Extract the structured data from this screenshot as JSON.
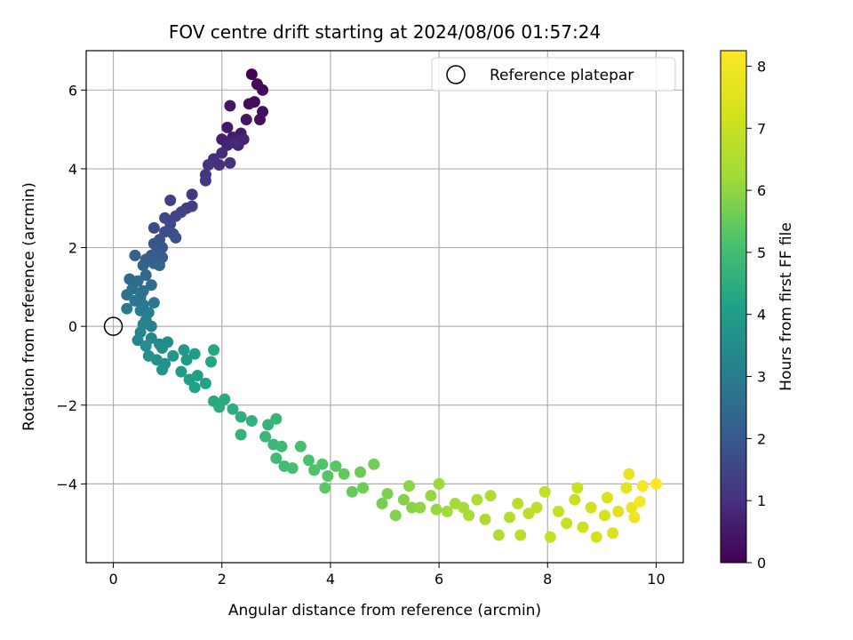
{
  "chart_data": {
    "type": "scatter",
    "title": "FOV centre drift starting at 2024/08/06 01:57:24",
    "xlabel": "Angular distance from reference (arcmin)",
    "ylabel": "Rotation from reference (arcmin)",
    "xlim": [
      -0.5,
      10.5
    ],
    "ylim": [
      -6.0,
      7.0
    ],
    "xticks": [
      0,
      2,
      4,
      6,
      8,
      10
    ],
    "yticks": [
      -4,
      -2,
      0,
      2,
      4,
      6
    ],
    "xtick_labels": [
      "0",
      "2",
      "4",
      "6",
      "8",
      "10"
    ],
    "ytick_labels": [
      "−4",
      "−2",
      "0",
      "2",
      "4",
      "6"
    ],
    "grid": true,
    "legend": {
      "placement": "top-right",
      "entries": [
        "Reference platepar"
      ]
    },
    "reference_point": {
      "x": 0,
      "y": 0,
      "label": "Reference platepar"
    },
    "colorbar": {
      "label": "Hours from first FF file",
      "min": 0,
      "max": 8.25,
      "ticks": [
        0,
        1,
        2,
        3,
        4,
        5,
        6,
        7,
        8
      ],
      "tick_labels": [
        "0",
        "1",
        "2",
        "3",
        "4",
        "5",
        "6",
        "7",
        "8"
      ],
      "colormap": "viridis"
    },
    "series": [
      {
        "color_by": "hours",
        "points": [
          {
            "x": 2.55,
            "y": 6.4,
            "h": 0.05
          },
          {
            "x": 2.65,
            "y": 6.15,
            "h": 0.1
          },
          {
            "x": 2.75,
            "y": 6.0,
            "h": 0.15
          },
          {
            "x": 2.6,
            "y": 5.7,
            "h": 0.2
          },
          {
            "x": 2.5,
            "y": 5.65,
            "h": 0.25
          },
          {
            "x": 2.75,
            "y": 5.45,
            "h": 0.3
          },
          {
            "x": 2.7,
            "y": 5.25,
            "h": 0.35
          },
          {
            "x": 2.45,
            "y": 5.25,
            "h": 0.4
          },
          {
            "x": 2.15,
            "y": 5.6,
            "h": 0.45
          },
          {
            "x": 2.1,
            "y": 5.05,
            "h": 0.5
          },
          {
            "x": 2.35,
            "y": 4.9,
            "h": 0.55
          },
          {
            "x": 2.0,
            "y": 4.75,
            "h": 0.6
          },
          {
            "x": 2.2,
            "y": 4.8,
            "h": 0.65
          },
          {
            "x": 2.3,
            "y": 4.6,
            "h": 0.7
          },
          {
            "x": 2.1,
            "y": 4.6,
            "h": 0.75
          },
          {
            "x": 2.4,
            "y": 4.75,
            "h": 0.8
          },
          {
            "x": 2.25,
            "y": 4.65,
            "h": 0.85
          },
          {
            "x": 2.0,
            "y": 4.4,
            "h": 0.9
          },
          {
            "x": 1.85,
            "y": 4.25,
            "h": 0.95
          },
          {
            "x": 1.95,
            "y": 4.1,
            "h": 1.0
          },
          {
            "x": 2.15,
            "y": 4.15,
            "h": 1.05
          },
          {
            "x": 1.75,
            "y": 4.1,
            "h": 1.1
          },
          {
            "x": 1.7,
            "y": 3.85,
            "h": 1.15
          },
          {
            "x": 1.7,
            "y": 3.7,
            "h": 1.2
          },
          {
            "x": 1.45,
            "y": 3.35,
            "h": 1.25
          },
          {
            "x": 1.35,
            "y": 3.0,
            "h": 1.3
          },
          {
            "x": 1.45,
            "y": 3.05,
            "h": 1.35
          },
          {
            "x": 1.05,
            "y": 3.2,
            "h": 1.4
          },
          {
            "x": 1.25,
            "y": 2.9,
            "h": 1.45
          },
          {
            "x": 1.15,
            "y": 2.8,
            "h": 1.5
          },
          {
            "x": 0.95,
            "y": 2.75,
            "h": 1.55
          },
          {
            "x": 1.05,
            "y": 2.6,
            "h": 1.6
          },
          {
            "x": 0.75,
            "y": 2.5,
            "h": 1.65
          },
          {
            "x": 0.95,
            "y": 2.4,
            "h": 1.7
          },
          {
            "x": 1.1,
            "y": 2.35,
            "h": 1.75
          },
          {
            "x": 1.15,
            "y": 2.25,
            "h": 1.8
          },
          {
            "x": 0.85,
            "y": 2.2,
            "h": 1.85
          },
          {
            "x": 0.75,
            "y": 2.1,
            "h": 1.9
          },
          {
            "x": 0.9,
            "y": 2.0,
            "h": 1.95
          },
          {
            "x": 0.8,
            "y": 1.9,
            "h": 2.0
          },
          {
            "x": 0.9,
            "y": 1.75,
            "h": 2.05
          },
          {
            "x": 0.7,
            "y": 1.8,
            "h": 2.1
          },
          {
            "x": 0.6,
            "y": 1.7,
            "h": 2.15
          },
          {
            "x": 0.75,
            "y": 1.6,
            "h": 2.2
          },
          {
            "x": 0.4,
            "y": 1.8,
            "h": 2.25
          },
          {
            "x": 0.55,
            "y": 1.55,
            "h": 2.3
          },
          {
            "x": 0.85,
            "y": 1.55,
            "h": 2.35
          },
          {
            "x": 0.6,
            "y": 1.3,
            "h": 2.4
          },
          {
            "x": 0.3,
            "y": 1.2,
            "h": 2.45
          },
          {
            "x": 0.45,
            "y": 1.15,
            "h": 2.5
          },
          {
            "x": 0.7,
            "y": 1.05,
            "h": 2.55
          },
          {
            "x": 0.55,
            "y": 0.9,
            "h": 2.6
          },
          {
            "x": 0.35,
            "y": 0.95,
            "h": 2.65
          },
          {
            "x": 0.25,
            "y": 0.8,
            "h": 2.7
          },
          {
            "x": 0.5,
            "y": 0.75,
            "h": 2.75
          },
          {
            "x": 0.4,
            "y": 0.65,
            "h": 2.8
          },
          {
            "x": 0.55,
            "y": 0.55,
            "h": 2.85
          },
          {
            "x": 0.75,
            "y": 0.6,
            "h": 2.9
          },
          {
            "x": 0.25,
            "y": 0.45,
            "h": 2.95
          },
          {
            "x": 0.5,
            "y": 0.4,
            "h": 3.0
          },
          {
            "x": 0.65,
            "y": 0.35,
            "h": 3.05
          },
          {
            "x": 0.6,
            "y": 0.15,
            "h": 3.1
          },
          {
            "x": 0.7,
            "y": 0.0,
            "h": 3.15
          },
          {
            "x": 0.55,
            "y": 0.05,
            "h": 3.2
          },
          {
            "x": 0.5,
            "y": -0.15,
            "h": 3.25
          },
          {
            "x": 0.45,
            "y": -0.35,
            "h": 3.3
          },
          {
            "x": 0.7,
            "y": -0.3,
            "h": 3.35
          },
          {
            "x": 0.85,
            "y": -0.45,
            "h": 3.4
          },
          {
            "x": 1.0,
            "y": -0.4,
            "h": 3.45
          },
          {
            "x": 0.9,
            "y": -0.55,
            "h": 3.5
          },
          {
            "x": 0.6,
            "y": -0.5,
            "h": 3.55
          },
          {
            "x": 0.65,
            "y": -0.75,
            "h": 3.6
          },
          {
            "x": 0.8,
            "y": -0.85,
            "h": 3.65
          },
          {
            "x": 0.95,
            "y": -0.95,
            "h": 3.7
          },
          {
            "x": 0.9,
            "y": -1.1,
            "h": 3.75
          },
          {
            "x": 1.1,
            "y": -0.75,
            "h": 3.8
          },
          {
            "x": 1.3,
            "y": -0.6,
            "h": 3.85
          },
          {
            "x": 1.35,
            "y": -0.85,
            "h": 3.9
          },
          {
            "x": 1.5,
            "y": -0.7,
            "h": 3.95
          },
          {
            "x": 1.25,
            "y": -1.15,
            "h": 4.0
          },
          {
            "x": 1.4,
            "y": -1.35,
            "h": 4.05
          },
          {
            "x": 1.55,
            "y": -1.25,
            "h": 4.1
          },
          {
            "x": 1.5,
            "y": -1.55,
            "h": 4.15
          },
          {
            "x": 1.7,
            "y": -1.45,
            "h": 4.2
          },
          {
            "x": 1.8,
            "y": -0.9,
            "h": 4.25
          },
          {
            "x": 1.85,
            "y": -0.6,
            "h": 4.3
          },
          {
            "x": 1.85,
            "y": -1.9,
            "h": 4.35
          },
          {
            "x": 2.05,
            "y": -1.85,
            "h": 4.4
          },
          {
            "x": 1.95,
            "y": -2.05,
            "h": 4.45
          },
          {
            "x": 2.2,
            "y": -2.1,
            "h": 4.5
          },
          {
            "x": 2.35,
            "y": -2.3,
            "h": 4.55
          },
          {
            "x": 2.55,
            "y": -2.4,
            "h": 4.6
          },
          {
            "x": 2.35,
            "y": -2.75,
            "h": 4.65
          },
          {
            "x": 2.85,
            "y": -2.5,
            "h": 4.7
          },
          {
            "x": 3.0,
            "y": -2.35,
            "h": 4.75
          },
          {
            "x": 2.8,
            "y": -2.8,
            "h": 4.8
          },
          {
            "x": 2.95,
            "y": -3.0,
            "h": 4.85
          },
          {
            "x": 3.1,
            "y": -3.05,
            "h": 4.9
          },
          {
            "x": 3.0,
            "y": -3.35,
            "h": 4.95
          },
          {
            "x": 3.15,
            "y": -3.55,
            "h": 5.0
          },
          {
            "x": 3.3,
            "y": -3.6,
            "h": 5.05
          },
          {
            "x": 3.45,
            "y": -3.05,
            "h": 5.1
          },
          {
            "x": 3.6,
            "y": -3.4,
            "h": 5.15
          },
          {
            "x": 3.7,
            "y": -3.65,
            "h": 5.2
          },
          {
            "x": 3.85,
            "y": -3.5,
            "h": 5.25
          },
          {
            "x": 3.95,
            "y": -3.8,
            "h": 5.3
          },
          {
            "x": 4.1,
            "y": -3.55,
            "h": 5.35
          },
          {
            "x": 3.9,
            "y": -4.1,
            "h": 5.4
          },
          {
            "x": 4.25,
            "y": -3.75,
            "h": 5.45
          },
          {
            "x": 4.4,
            "y": -4.2,
            "h": 5.5
          },
          {
            "x": 4.55,
            "y": -3.7,
            "h": 5.55
          },
          {
            "x": 4.6,
            "y": -4.1,
            "h": 5.6
          },
          {
            "x": 4.8,
            "y": -3.5,
            "h": 5.65
          },
          {
            "x": 4.95,
            "y": -4.5,
            "h": 5.7
          },
          {
            "x": 5.05,
            "y": -4.25,
            "h": 5.75
          },
          {
            "x": 5.2,
            "y": -4.8,
            "h": 5.8
          },
          {
            "x": 5.35,
            "y": -4.4,
            "h": 5.85
          },
          {
            "x": 5.5,
            "y": -4.6,
            "h": 5.9
          },
          {
            "x": 5.45,
            "y": -4.05,
            "h": 5.95
          },
          {
            "x": 5.65,
            "y": -4.6,
            "h": 6.0
          },
          {
            "x": 5.85,
            "y": -4.3,
            "h": 6.05
          },
          {
            "x": 5.95,
            "y": -4.65,
            "h": 6.1
          },
          {
            "x": 6.0,
            "y": -4.0,
            "h": 6.15
          },
          {
            "x": 6.15,
            "y": -4.7,
            "h": 6.2
          },
          {
            "x": 6.3,
            "y": -4.5,
            "h": 6.25
          },
          {
            "x": 6.45,
            "y": -4.6,
            "h": 6.3
          },
          {
            "x": 6.55,
            "y": -4.8,
            "h": 6.35
          },
          {
            "x": 6.7,
            "y": -4.4,
            "h": 6.4
          },
          {
            "x": 6.85,
            "y": -4.9,
            "h": 6.45
          },
          {
            "x": 6.95,
            "y": -4.3,
            "h": 6.5
          },
          {
            "x": 7.1,
            "y": -5.3,
            "h": 6.55
          },
          {
            "x": 7.3,
            "y": -4.85,
            "h": 6.6
          },
          {
            "x": 7.45,
            "y": -4.5,
            "h": 6.65
          },
          {
            "x": 7.5,
            "y": -5.3,
            "h": 6.7
          },
          {
            "x": 7.65,
            "y": -4.75,
            "h": 6.75
          },
          {
            "x": 7.8,
            "y": -4.6,
            "h": 6.8
          },
          {
            "x": 7.95,
            "y": -4.2,
            "h": 6.85
          },
          {
            "x": 8.05,
            "y": -5.35,
            "h": 6.9
          },
          {
            "x": 8.2,
            "y": -4.7,
            "h": 6.95
          },
          {
            "x": 8.35,
            "y": -5.0,
            "h": 7.0
          },
          {
            "x": 8.5,
            "y": -4.4,
            "h": 7.05
          },
          {
            "x": 8.55,
            "y": -4.1,
            "h": 7.1
          },
          {
            "x": 8.65,
            "y": -5.1,
            "h": 7.15
          },
          {
            "x": 8.8,
            "y": -4.6,
            "h": 7.2
          },
          {
            "x": 8.9,
            "y": -5.35,
            "h": 7.25
          },
          {
            "x": 9.05,
            "y": -4.8,
            "h": 7.3
          },
          {
            "x": 9.1,
            "y": -4.35,
            "h": 7.35
          },
          {
            "x": 9.2,
            "y": -5.25,
            "h": 7.4
          },
          {
            "x": 9.3,
            "y": -4.7,
            "h": 7.5
          },
          {
            "x": 9.45,
            "y": -4.1,
            "h": 7.6
          },
          {
            "x": 9.5,
            "y": -3.75,
            "h": 7.7
          },
          {
            "x": 9.55,
            "y": -4.6,
            "h": 7.8
          },
          {
            "x": 9.6,
            "y": -4.85,
            "h": 7.9
          },
          {
            "x": 9.7,
            "y": -4.45,
            "h": 8.0
          },
          {
            "x": 9.75,
            "y": -4.05,
            "h": 8.1
          },
          {
            "x": 10.0,
            "y": -4.0,
            "h": 8.25
          }
        ]
      }
    ]
  }
}
